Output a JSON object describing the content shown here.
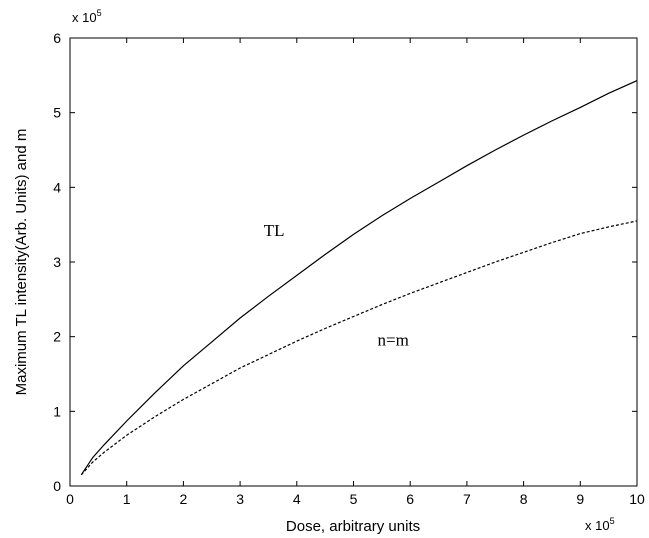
{
  "chart_data": {
    "type": "line",
    "xlabel": "Dose, arbitrary units",
    "ylabel": "Maximum TL intensity(Arb. Units) and m",
    "x_multiplier": {
      "base": "x 10",
      "exponent": "5"
    },
    "y_multiplier": {
      "base": "x 10",
      "exponent": "5"
    },
    "xlim": [
      0,
      10
    ],
    "ylim": [
      0,
      6
    ],
    "x_ticks": [
      "0",
      "1",
      "2",
      "3",
      "4",
      "5",
      "6",
      "7",
      "8",
      "9",
      "10"
    ],
    "y_ticks": [
      "0",
      "1",
      "2",
      "3",
      "4",
      "5",
      "6"
    ],
    "grid": false,
    "series": [
      {
        "style": "solid",
        "color": "#000000",
        "x": [
          0.2,
          0.4,
          0.6,
          1.0,
          1.5,
          2.0,
          2.5,
          3.0,
          3.5,
          4.0,
          4.5,
          5.0,
          5.5,
          6.0,
          6.5,
          7.0,
          7.5,
          8.0,
          8.5,
          9.0,
          9.5,
          10.0
        ],
        "y": [
          0.15,
          0.38,
          0.55,
          0.87,
          1.25,
          1.61,
          1.93,
          2.25,
          2.54,
          2.82,
          3.1,
          3.37,
          3.62,
          3.85,
          4.07,
          4.29,
          4.5,
          4.7,
          4.89,
          5.07,
          5.26,
          5.43
        ]
      },
      {
        "style": "dashed",
        "color": "#000000",
        "x": [
          0.2,
          0.4,
          0.6,
          1.0,
          1.5,
          2.0,
          2.5,
          3.0,
          3.5,
          4.0,
          4.5,
          5.0,
          5.5,
          6.0,
          6.5,
          7.0,
          7.5,
          8.0,
          8.5,
          9.0,
          9.5,
          10.0
        ],
        "y": [
          0.15,
          0.32,
          0.45,
          0.68,
          0.93,
          1.16,
          1.37,
          1.58,
          1.76,
          1.94,
          2.11,
          2.27,
          2.43,
          2.58,
          2.72,
          2.86,
          3.0,
          3.13,
          3.26,
          3.38,
          3.47,
          3.55
        ]
      }
    ],
    "annotations": [
      {
        "text": "TL",
        "x": 3.6,
        "y": 3.35
      },
      {
        "text": "n=m",
        "x": 5.7,
        "y": 1.88
      }
    ]
  }
}
